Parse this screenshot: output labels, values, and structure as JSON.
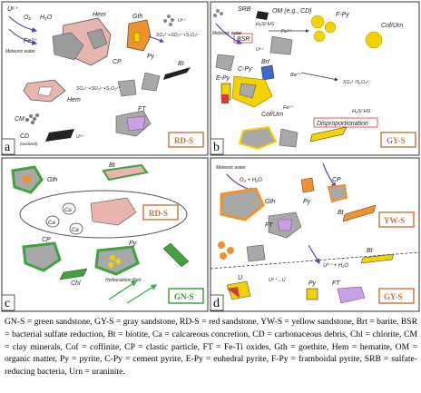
{
  "panels": {
    "a": {
      "letter": "a",
      "box": "RD-S",
      "box_color": "#c9723a",
      "labels": {
        "uplus": "U⁶⁺",
        "o2": "O₂",
        "h2o": "H₂O",
        "fe": "Fe³⁺",
        "meteoric": "Meteoric water",
        "hem1": "Hem",
        "cp": "CP",
        "gth": "Gth",
        "py": "Py",
        "so4": "SO₄²⁻+SO₃²⁻+S₂O₃²⁻",
        "bt": "Bt",
        "u6_1": "U⁶⁺",
        "hem2": "Hem",
        "so4b": "SO₄²⁻+SO₃²⁻+S₂O₃²⁻",
        "cm": "CM",
        "cd": "CD",
        "cd_note": "(oxidized)",
        "ft": "FT",
        "u6_2": "U⁶⁺"
      }
    },
    "b": {
      "letter": "b",
      "box": "GY-S",
      "box_color": "#c9723a",
      "labels": {
        "srb": "SRB",
        "om": "OM (e.g., CD)",
        "h2s": "H₂S/ HS⁻",
        "bsr": "BSR",
        "fe2": "Fe²⁺",
        "fpy": "F-Py",
        "u6": "U⁶⁺",
        "meteoric": "Meteoric water",
        "cof1": "Cof/Urn",
        "brt": "Brt",
        "cpy": "C-Py",
        "ba": "Ba²⁺",
        "so4": "SO₄²⁻/S₂O₃²⁻",
        "epy": "E-Py",
        "fe2b": "Fe²⁺",
        "h2sb": "H₂S/ HS⁻",
        "cof2": "Cof/Urn",
        "disp": "Disproportionation"
      }
    },
    "c": {
      "letter": "c",
      "box": "GN-S",
      "box_color": "#2e9a3a",
      "labels": {
        "gth": "Gth",
        "bt": "Bt",
        "ca1": "Ca",
        "ca2": "Ca",
        "ca3": "Ca",
        "rds": "RD-S",
        "cp": "CP",
        "py": "Py",
        "chl": "Chl",
        "hydro": "Hydrocarbon fluid"
      }
    },
    "d": {
      "letter": "d",
      "box1": "YW-S",
      "box2": "GY-S",
      "box_color": "#c9723a",
      "labels": {
        "meteoric": "Meteoric water",
        "o2": "O₂ + H₂O",
        "gth": "Gth",
        "py1": "Py",
        "cp": "CP",
        "bt1": "Bt",
        "ft1": "FT",
        "u6": "U⁶⁺ + H₂O",
        "bt2": "Bt",
        "u": "U",
        "py2": "Py",
        "ft2": "FT",
        "arrow_u": "U⁶⁺→U"
      }
    }
  },
  "colors": {
    "hematite": "#e8b4ae",
    "red_box": "#c9723a",
    "green": "#3fa13f",
    "yellow": "#f2d300",
    "purple": "#c9a0e0",
    "grey": "#a8a8a8",
    "orange": "#f0922a",
    "blue": "#3f3fcf"
  },
  "caption": "GN-S = green sandstone, GY-S = gray sandstone, RD-S = red sandstone, YW-S = yellow sandstone, Brt = barite, BSR = bacterial sulfate reduction, Bt = biotite, Ca = calcareous concretion, CD = carbonaceous debris, Chl = chlorite, CM = clay minerals, Cof = coffinite, CP = clastic particle, FT = Fe-Ti oxides, Gth = goethite, Hem = hematite, OM = organic matter, Py = pyrite, C-Py = cement pyrite, E-Py = euhedral pyrite, F-Py = framboidal pyrite, SRB = sulfate-reducing bacteria, Urn = uraninite."
}
